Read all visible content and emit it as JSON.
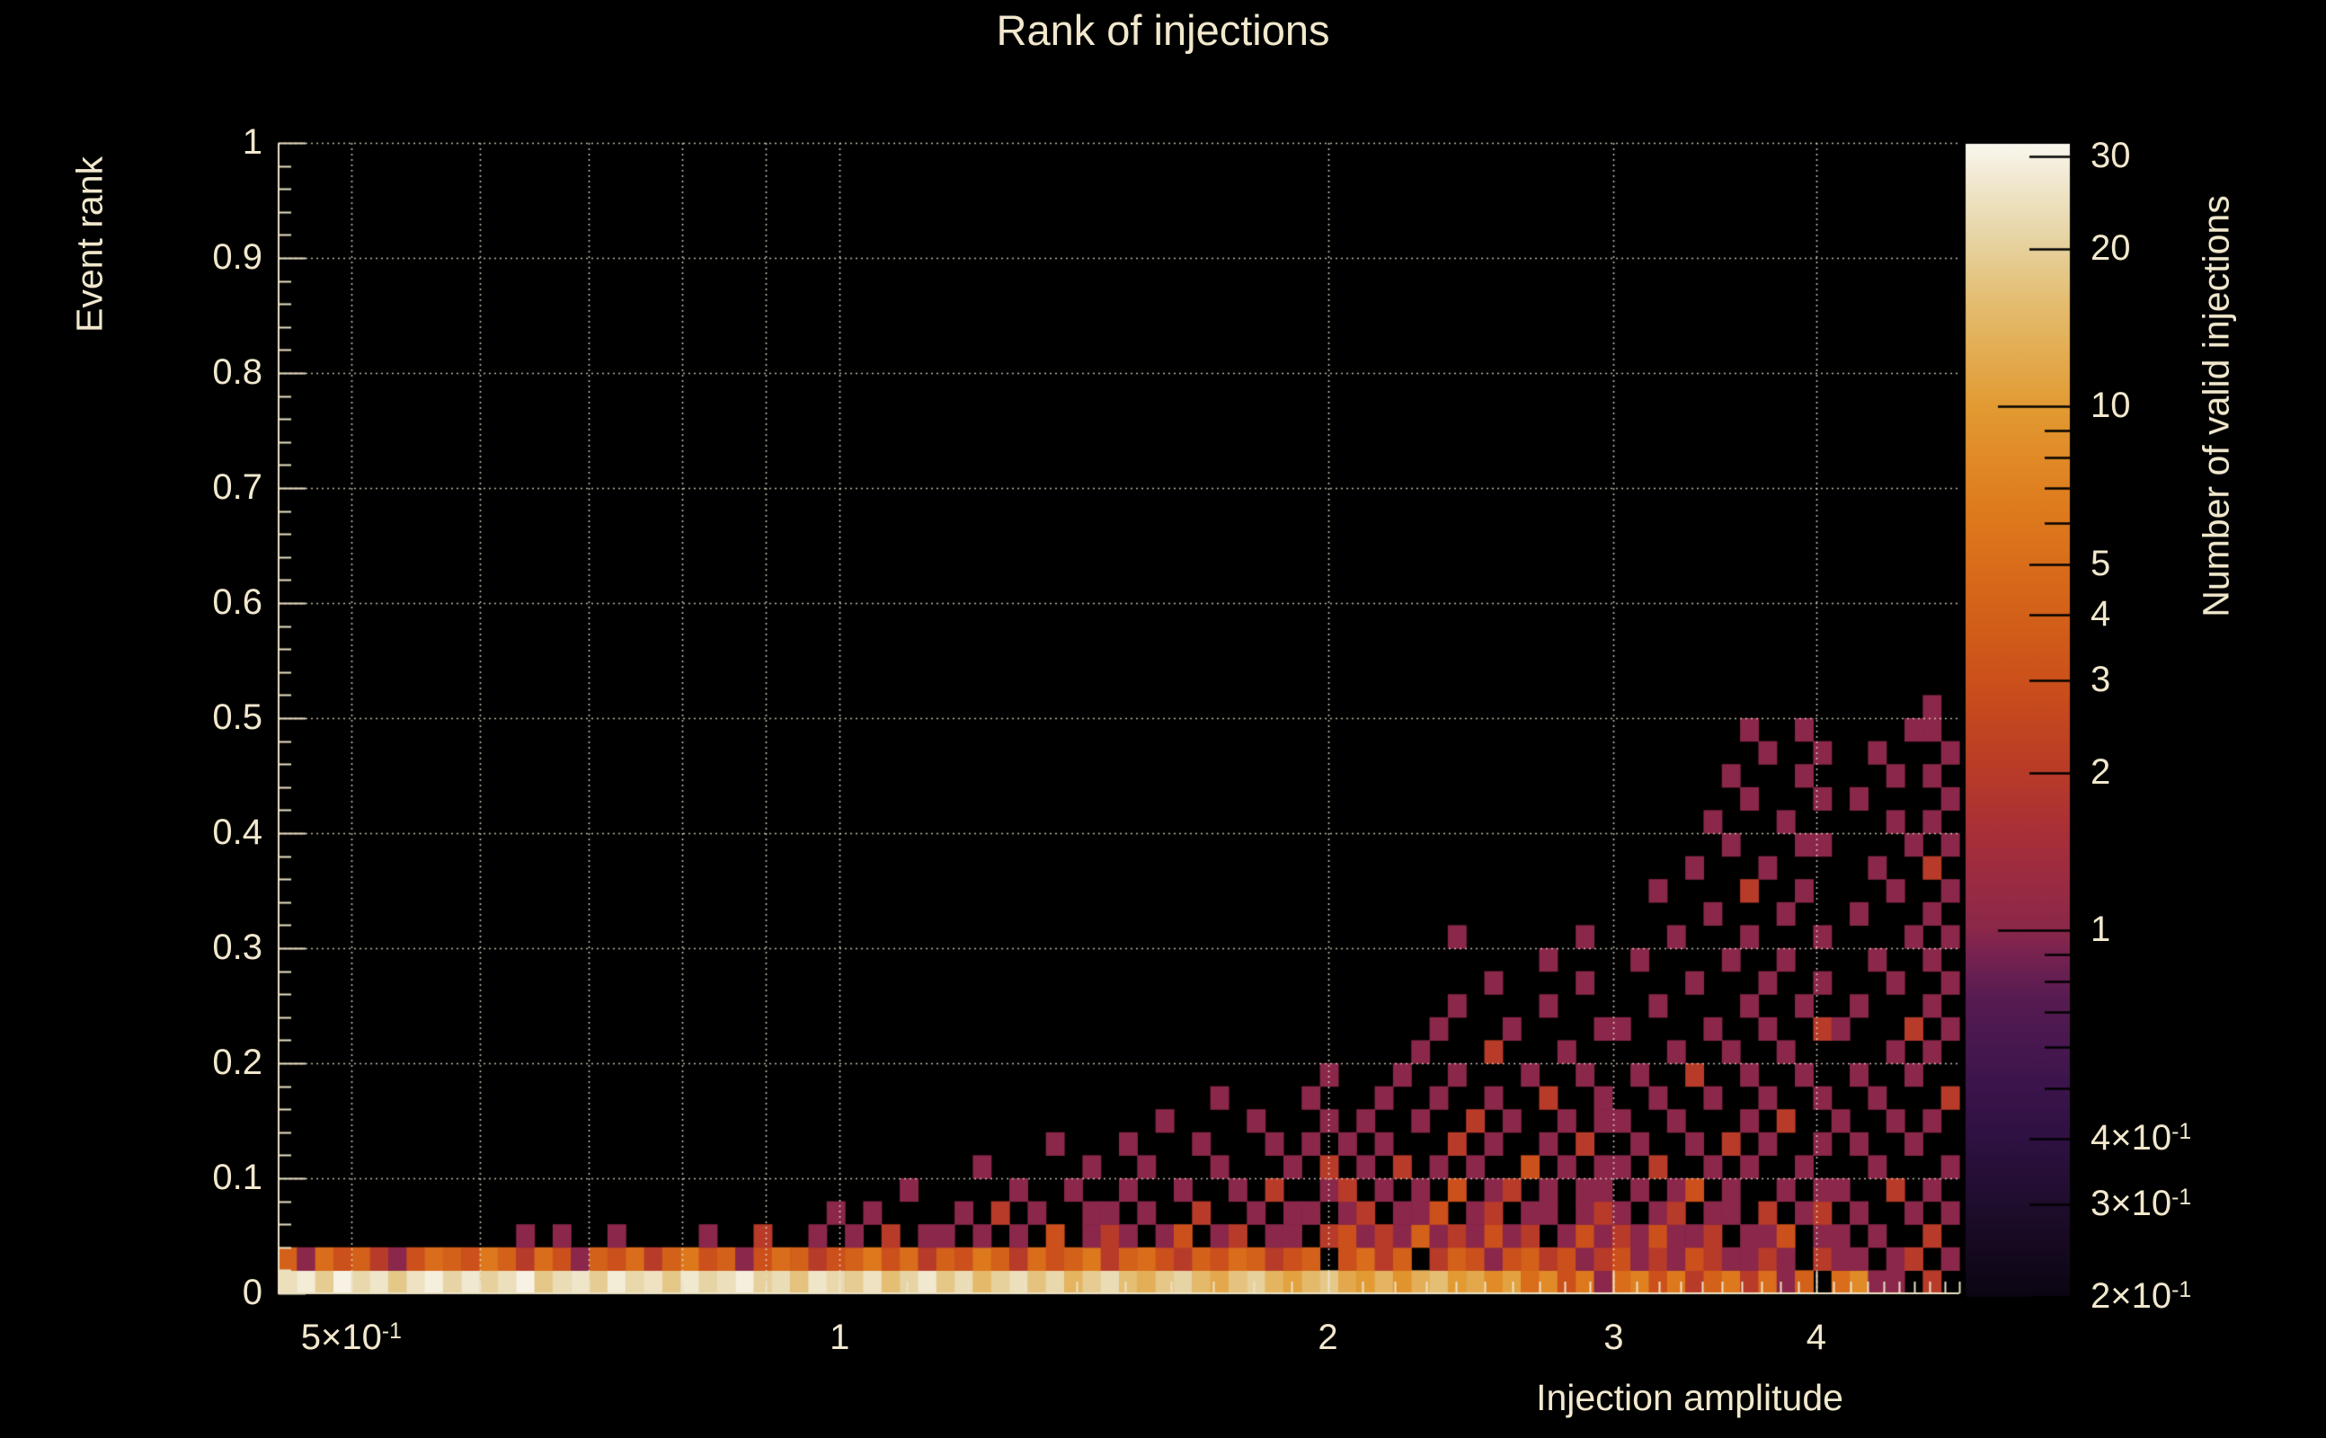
{
  "chart_data": {
    "type": "heatmap",
    "title": "Rank of injections",
    "xlabel": "Injection amplitude",
    "ylabel": "Event rank",
    "zlabel": "Number of valid injections",
    "x_scale": "log",
    "x_range": [
      0.451,
      4.9
    ],
    "y_range": [
      0,
      1
    ],
    "z_scale": "log",
    "z_range": [
      0.2,
      31.7
    ],
    "grid": true,
    "background_color": "#000000",
    "text_color": "#f1e8cd",
    "axis_color": "#ece2c6",
    "grid_color": "rgba(240,233,210,0.8)",
    "x_ticks": [
      {
        "v": 0.5,
        "m": "5×10",
        "sup": "-1"
      },
      {
        "v": 1,
        "m": "1"
      },
      {
        "v": 2,
        "m": "2"
      },
      {
        "v": 3,
        "m": "3"
      },
      {
        "v": 4,
        "m": "4"
      }
    ],
    "x_gridlines": [
      0.5,
      0.6,
      0.7,
      0.8,
      0.9,
      1,
      2,
      3,
      4
    ],
    "y_ticks": [
      {
        "v": 0,
        "m": "0"
      },
      {
        "v": 0.1,
        "m": "0.1"
      },
      {
        "v": 0.2,
        "m": "0.2"
      },
      {
        "v": 0.3,
        "m": "0.3"
      },
      {
        "v": 0.4,
        "m": "0.4"
      },
      {
        "v": 0.5,
        "m": "0.5"
      },
      {
        "v": 0.6,
        "m": "0.6"
      },
      {
        "v": 0.7,
        "m": "0.7"
      },
      {
        "v": 0.8,
        "m": "0.8"
      },
      {
        "v": 0.9,
        "m": "0.9"
      },
      {
        "v": 1,
        "m": "1"
      }
    ],
    "y_gridlines": [
      0.1,
      0.2,
      0.3,
      0.4,
      0.5,
      0.6,
      0.7,
      0.8,
      0.9,
      1.0
    ],
    "z_ticks": [
      {
        "v": 30,
        "m": "30"
      },
      {
        "v": 20,
        "m": "20"
      },
      {
        "v": 10,
        "m": "10"
      },
      {
        "v": 5,
        "m": "5"
      },
      {
        "v": 4,
        "m": "4"
      },
      {
        "v": 3,
        "m": "3"
      },
      {
        "v": 2,
        "m": "2"
      },
      {
        "v": 1,
        "m": "1"
      },
      {
        "v": 0.4,
        "m": "4×10",
        "sup": "-1"
      },
      {
        "v": 0.3,
        "m": "3×10",
        "sup": "-1"
      },
      {
        "v": 0.2,
        "m": "2×10",
        "sup": "-1"
      }
    ],
    "z_unlabeled_ticks": [
      0.5,
      0.6,
      0.7,
      0.8,
      0.9,
      6,
      7,
      8,
      9
    ],
    "colormap_stops": [
      [
        0.0,
        "#0b0511"
      ],
      [
        0.08,
        "#1f0d2d"
      ],
      [
        0.14,
        "#2f1143"
      ],
      [
        0.19,
        "#3d154d"
      ],
      [
        0.26,
        "#571c52"
      ],
      [
        0.3,
        "#7a2350"
      ],
      [
        0.32,
        "#8c2849"
      ],
      [
        0.36,
        "#9a2b42"
      ],
      [
        0.4,
        "#a72f38"
      ],
      [
        0.46,
        "#ba3c27"
      ],
      [
        0.53,
        "#cb4f1b"
      ],
      [
        0.61,
        "#d66619"
      ],
      [
        0.69,
        "#df7d1e"
      ],
      [
        0.77,
        "#e29a31"
      ],
      [
        0.86,
        "#e4bc6e"
      ],
      [
        0.92,
        "#e7d5a5"
      ],
      [
        0.97,
        "#f1e9d1"
      ],
      [
        1.0,
        "#faf7ee"
      ]
    ],
    "bins": {
      "nx": 92,
      "ny": 50
    },
    "row0": [
      24,
      28,
      19,
      30,
      22,
      26,
      18,
      25,
      29,
      21,
      27,
      20,
      24,
      30,
      18,
      23,
      26,
      19,
      28,
      22,
      25,
      18,
      27,
      21,
      24,
      29,
      20,
      23,
      17,
      26,
      22,
      19,
      25,
      16,
      21,
      27,
      18,
      23,
      15,
      20,
      24,
      17,
      22,
      14,
      19,
      23,
      16,
      13,
      18,
      21,
      15,
      12,
      17,
      20,
      14,
      11,
      15,
      18,
      12,
      10,
      14,
      9,
      13,
      16,
      10,
      12,
      8,
      11,
      5,
      8,
      3,
      6,
      1,
      5,
      7,
      3,
      6,
      2,
      4,
      6,
      2,
      5,
      1,
      4,
      0,
      5,
      8,
      1,
      1,
      0,
      2,
      0
    ],
    "row1": [
      4,
      1,
      5,
      3,
      4,
      2,
      1,
      3,
      5,
      4,
      3,
      6,
      4,
      2,
      5,
      3,
      1,
      4,
      3,
      5,
      2,
      4,
      6,
      3,
      4,
      1,
      3,
      5,
      4,
      2,
      3,
      4,
      6,
      3,
      5,
      2,
      4,
      3,
      6,
      4,
      2,
      5,
      3,
      4,
      6,
      2,
      4,
      5,
      3,
      2,
      4,
      3,
      5,
      4,
      2,
      3,
      4,
      0,
      3,
      5,
      2,
      4,
      0,
      2,
      4,
      3,
      1,
      3,
      4,
      2,
      3,
      1,
      2,
      3,
      1,
      2,
      1,
      3,
      2,
      1,
      1,
      2,
      1,
      0,
      2,
      1,
      1,
      0,
      1,
      2,
      0,
      1
    ],
    "cells": [
      [
        13,
        2,
        1
      ],
      [
        15,
        2,
        1
      ],
      [
        18,
        2,
        1
      ],
      [
        23,
        2,
        1
      ],
      [
        26,
        2,
        2
      ],
      [
        29,
        2,
        1
      ],
      [
        30,
        3,
        1
      ],
      [
        31,
        2,
        1
      ],
      [
        33,
        2,
        2
      ],
      [
        35,
        2,
        1
      ],
      [
        36,
        2,
        1
      ],
      [
        38,
        2,
        1
      ],
      [
        40,
        2,
        1
      ],
      [
        42,
        2,
        3
      ],
      [
        44,
        2,
        1
      ],
      [
        32,
        3,
        1
      ],
      [
        37,
        3,
        1
      ],
      [
        39,
        3,
        2
      ],
      [
        41,
        3,
        1
      ],
      [
        44,
        3,
        1
      ],
      [
        34,
        4,
        1
      ],
      [
        40,
        4,
        1
      ],
      [
        43,
        4,
        1
      ],
      [
        38,
        5,
        1
      ],
      [
        44,
        5,
        1
      ],
      [
        42,
        6,
        1
      ],
      [
        45,
        2,
        2
      ],
      [
        46,
        2,
        1
      ],
      [
        48,
        2,
        1
      ],
      [
        49,
        2,
        3
      ],
      [
        51,
        2,
        1
      ],
      [
        52,
        2,
        2
      ],
      [
        54,
        2,
        1
      ],
      [
        55,
        2,
        1
      ],
      [
        57,
        2,
        2
      ],
      [
        45,
        3,
        1
      ],
      [
        47,
        3,
        1
      ],
      [
        50,
        3,
        2
      ],
      [
        53,
        3,
        1
      ],
      [
        55,
        3,
        1
      ],
      [
        56,
        3,
        1
      ],
      [
        46,
        4,
        1
      ],
      [
        49,
        4,
        1
      ],
      [
        52,
        4,
        1
      ],
      [
        54,
        4,
        2
      ],
      [
        57,
        4,
        1
      ],
      [
        47,
        5,
        1
      ],
      [
        51,
        5,
        1
      ],
      [
        55,
        5,
        1
      ],
      [
        57,
        5,
        2
      ],
      [
        46,
        6,
        1
      ],
      [
        50,
        6,
        1
      ],
      [
        54,
        6,
        1
      ],
      [
        56,
        6,
        1
      ],
      [
        48,
        7,
        1
      ],
      [
        53,
        7,
        1
      ],
      [
        57,
        7,
        1
      ],
      [
        51,
        8,
        1
      ],
      [
        56,
        8,
        1
      ],
      [
        57,
        9,
        1
      ],
      [
        58,
        2,
        3
      ],
      [
        59,
        2,
        1
      ],
      [
        60,
        2,
        2
      ],
      [
        61,
        2,
        1
      ],
      [
        62,
        2,
        4
      ],
      [
        63,
        2,
        1
      ],
      [
        64,
        2,
        2
      ],
      [
        65,
        2,
        1
      ],
      [
        66,
        2,
        3
      ],
      [
        67,
        2,
        1
      ],
      [
        68,
        2,
        2
      ],
      [
        70,
        2,
        1
      ],
      [
        71,
        2,
        3
      ],
      [
        72,
        2,
        1
      ],
      [
        58,
        3,
        1
      ],
      [
        59,
        3,
        2
      ],
      [
        61,
        3,
        1
      ],
      [
        62,
        3,
        1
      ],
      [
        63,
        3,
        3
      ],
      [
        65,
        3,
        1
      ],
      [
        66,
        3,
        2
      ],
      [
        68,
        3,
        1
      ],
      [
        69,
        3,
        1
      ],
      [
        71,
        3,
        1
      ],
      [
        72,
        3,
        2
      ],
      [
        58,
        4,
        2
      ],
      [
        60,
        4,
        1
      ],
      [
        62,
        4,
        1
      ],
      [
        64,
        4,
        3
      ],
      [
        66,
        4,
        1
      ],
      [
        67,
        4,
        2
      ],
      [
        69,
        4,
        1
      ],
      [
        71,
        4,
        1
      ],
      [
        72,
        4,
        1
      ],
      [
        59,
        5,
        1
      ],
      [
        61,
        5,
        2
      ],
      [
        63,
        5,
        1
      ],
      [
        65,
        5,
        1
      ],
      [
        68,
        5,
        3
      ],
      [
        70,
        5,
        1
      ],
      [
        72,
        5,
        1
      ],
      [
        58,
        6,
        1
      ],
      [
        60,
        6,
        1
      ],
      [
        64,
        6,
        2
      ],
      [
        66,
        6,
        1
      ],
      [
        69,
        6,
        1
      ],
      [
        71,
        6,
        2
      ],
      [
        59,
        7,
        1
      ],
      [
        62,
        7,
        1
      ],
      [
        65,
        7,
        2
      ],
      [
        67,
        7,
        1
      ],
      [
        70,
        7,
        1
      ],
      [
        72,
        7,
        1
      ],
      [
        60,
        8,
        1
      ],
      [
        63,
        8,
        1
      ],
      [
        66,
        8,
        1
      ],
      [
        69,
        8,
        2
      ],
      [
        72,
        8,
        1
      ],
      [
        61,
        9,
        1
      ],
      [
        64,
        9,
        1
      ],
      [
        68,
        9,
        1
      ],
      [
        71,
        9,
        1
      ],
      [
        62,
        10,
        1
      ],
      [
        66,
        10,
        2
      ],
      [
        70,
        10,
        1
      ],
      [
        63,
        11,
        1
      ],
      [
        67,
        11,
        1
      ],
      [
        72,
        11,
        1
      ],
      [
        64,
        12,
        1
      ],
      [
        69,
        12,
        1
      ],
      [
        66,
        13,
        1
      ],
      [
        71,
        13,
        1
      ],
      [
        69,
        14,
        1
      ],
      [
        64,
        15,
        1
      ],
      [
        71,
        15,
        1
      ],
      [
        73,
        2,
        2
      ],
      [
        74,
        2,
        1
      ],
      [
        75,
        2,
        3
      ],
      [
        76,
        2,
        1
      ],
      [
        77,
        2,
        1
      ],
      [
        78,
        2,
        2
      ],
      [
        80,
        2,
        1
      ],
      [
        81,
        2,
        1
      ],
      [
        82,
        2,
        3
      ],
      [
        84,
        2,
        1
      ],
      [
        73,
        3,
        1
      ],
      [
        75,
        3,
        1
      ],
      [
        76,
        3,
        2
      ],
      [
        78,
        3,
        1
      ],
      [
        79,
        3,
        1
      ],
      [
        81,
        3,
        2
      ],
      [
        83,
        3,
        1
      ],
      [
        84,
        3,
        2
      ],
      [
        74,
        4,
        1
      ],
      [
        76,
        4,
        1
      ],
      [
        77,
        4,
        3
      ],
      [
        79,
        4,
        1
      ],
      [
        82,
        4,
        1
      ],
      [
        84,
        4,
        1
      ],
      [
        73,
        5,
        1
      ],
      [
        75,
        5,
        2
      ],
      [
        78,
        5,
        1
      ],
      [
        80,
        5,
        1
      ],
      [
        83,
        5,
        1
      ],
      [
        74,
        6,
        1
      ],
      [
        77,
        6,
        1
      ],
      [
        79,
        6,
        2
      ],
      [
        81,
        6,
        1
      ],
      [
        84,
        6,
        1
      ],
      [
        73,
        7,
        1
      ],
      [
        76,
        7,
        1
      ],
      [
        80,
        7,
        1
      ],
      [
        82,
        7,
        2
      ],
      [
        75,
        8,
        1
      ],
      [
        78,
        8,
        1
      ],
      [
        81,
        8,
        1
      ],
      [
        84,
        8,
        1
      ],
      [
        74,
        9,
        1
      ],
      [
        77,
        9,
        2
      ],
      [
        80,
        9,
        1
      ],
      [
        83,
        9,
        1
      ],
      [
        76,
        10,
        1
      ],
      [
        79,
        10,
        1
      ],
      [
        82,
        10,
        1
      ],
      [
        73,
        11,
        1
      ],
      [
        78,
        11,
        1
      ],
      [
        81,
        11,
        1
      ],
      [
        84,
        11,
        2
      ],
      [
        75,
        12,
        1
      ],
      [
        80,
        12,
        1
      ],
      [
        83,
        12,
        1
      ],
      [
        77,
        13,
        1
      ],
      [
        81,
        13,
        1
      ],
      [
        84,
        13,
        1
      ],
      [
        74,
        14,
        1
      ],
      [
        79,
        14,
        1
      ],
      [
        82,
        14,
        1
      ],
      [
        76,
        15,
        1
      ],
      [
        80,
        15,
        1
      ],
      [
        84,
        15,
        1
      ],
      [
        78,
        16,
        1
      ],
      [
        82,
        16,
        1
      ],
      [
        75,
        17,
        1
      ],
      [
        80,
        17,
        2
      ],
      [
        83,
        17,
        1
      ],
      [
        77,
        18,
        1
      ],
      [
        81,
        18,
        1
      ],
      [
        79,
        19,
        1
      ],
      [
        83,
        19,
        1
      ],
      [
        84,
        19,
        1
      ],
      [
        78,
        20,
        1
      ],
      [
        82,
        20,
        1
      ],
      [
        80,
        21,
        1
      ],
      [
        84,
        21,
        1
      ],
      [
        79,
        22,
        1
      ],
      [
        83,
        22,
        1
      ],
      [
        81,
        23,
        1
      ],
      [
        84,
        23,
        1
      ],
      [
        80,
        24,
        1
      ],
      [
        83,
        24,
        1
      ],
      [
        85,
        2,
        1
      ],
      [
        87,
        2,
        1
      ],
      [
        90,
        2,
        2
      ],
      [
        86,
        3,
        1
      ],
      [
        89,
        3,
        1
      ],
      [
        91,
        3,
        1
      ],
      [
        85,
        4,
        1
      ],
      [
        88,
        4,
        2
      ],
      [
        90,
        4,
        1
      ],
      [
        87,
        5,
        1
      ],
      [
        91,
        5,
        1
      ],
      [
        86,
        6,
        1
      ],
      [
        89,
        6,
        1
      ],
      [
        85,
        7,
        1
      ],
      [
        88,
        7,
        1
      ],
      [
        90,
        7,
        1
      ],
      [
        87,
        8,
        1
      ],
      [
        91,
        8,
        2
      ],
      [
        86,
        9,
        1
      ],
      [
        89,
        9,
        1
      ],
      [
        88,
        10,
        1
      ],
      [
        90,
        10,
        1
      ],
      [
        85,
        11,
        1
      ],
      [
        89,
        11,
        2
      ],
      [
        91,
        11,
        1
      ],
      [
        86,
        12,
        1
      ],
      [
        90,
        12,
        1
      ],
      [
        88,
        13,
        1
      ],
      [
        91,
        13,
        1
      ],
      [
        87,
        14,
        1
      ],
      [
        90,
        14,
        1
      ],
      [
        89,
        15,
        1
      ],
      [
        91,
        15,
        1
      ],
      [
        86,
        16,
        1
      ],
      [
        90,
        16,
        1
      ],
      [
        88,
        17,
        1
      ],
      [
        91,
        17,
        1
      ],
      [
        87,
        18,
        1
      ],
      [
        90,
        18,
        2
      ],
      [
        89,
        19,
        1
      ],
      [
        91,
        19,
        1
      ],
      [
        88,
        20,
        1
      ],
      [
        90,
        20,
        1
      ],
      [
        86,
        21,
        1
      ],
      [
        91,
        21,
        1
      ],
      [
        88,
        22,
        1
      ],
      [
        90,
        22,
        1
      ],
      [
        87,
        23,
        1
      ],
      [
        91,
        23,
        1
      ],
      [
        89,
        24,
        1
      ],
      [
        90,
        24,
        1
      ],
      [
        90,
        25,
        1
      ]
    ]
  }
}
